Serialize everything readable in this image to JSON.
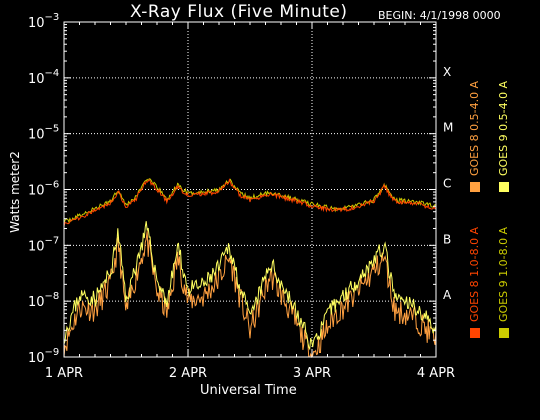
{
  "chart_data": {
    "type": "line",
    "title": "X-Ray Flux (Five Minute)",
    "subtitle": "BEGIN: 4/1/1998 0000",
    "xlabel": "Universal Time",
    "ylabel": "Watts meter⁻²",
    "ylabel_text": "Watts meter2",
    "y_scale": "log",
    "ylim": [
      1e-09,
      0.001
    ],
    "y_ticks": [
      {
        "exp": "-9",
        "value": 1e-09
      },
      {
        "exp": "-8",
        "value": 1e-08
      },
      {
        "exp": "-7",
        "value": 1e-07
      },
      {
        "exp": "-6",
        "value": 1e-06
      },
      {
        "exp": "-5",
        "value": 1e-05
      },
      {
        "exp": "-4",
        "value": 0.0001
      },
      {
        "exp": "-3",
        "value": 0.001
      }
    ],
    "x_ticks": [
      "1 APR",
      "2 APR",
      "3 APR",
      "4 APR"
    ],
    "xlim": [
      "1998-04-01 00:00",
      "1998-04-04 00:00"
    ],
    "grid": true,
    "flare_classes": [
      {
        "label": "X",
        "value": 0.0001
      },
      {
        "label": "M",
        "value": 1e-05
      },
      {
        "label": "C",
        "value": 1e-06
      },
      {
        "label": "B",
        "value": 1e-07
      },
      {
        "label": "A",
        "value": 1e-08
      }
    ],
    "legend_position": "right",
    "series": [
      {
        "name": "GOES 8 1.0-8.0 A",
        "color": "#ff4400",
        "band": "long"
      },
      {
        "name": "GOES 9 1.0-8.0 A",
        "color": "#cccc00",
        "band": "long"
      },
      {
        "name": "GOES 8 0.5-4.0 A",
        "color": "#ffa040",
        "band": "short"
      },
      {
        "name": "GOES 9 0.5-4.0 A",
        "color": "#ffff60",
        "band": "short"
      }
    ],
    "long_band_points": [
      [
        "1998-04-01 00:00",
        2.6e-07
      ],
      [
        "1998-04-01 03:00",
        3.4e-07
      ],
      [
        "1998-04-01 06:00",
        4.5e-07
      ],
      [
        "1998-04-01 09:00",
        6.2e-07
      ],
      [
        "1998-04-01 10:30",
        1e-06
      ],
      [
        "1998-04-01 12:00",
        5.2e-07
      ],
      [
        "1998-04-01 14:00",
        7.5e-07
      ],
      [
        "1998-04-01 16:00",
        1.6e-06
      ],
      [
        "1998-04-01 18:00",
        1.1e-06
      ],
      [
        "1998-04-01 20:00",
        6.5e-07
      ],
      [
        "1998-04-01 22:00",
        1.2e-06
      ],
      [
        "1998-04-02 00:00",
        8.5e-07
      ],
      [
        "1998-04-02 03:00",
        9e-07
      ],
      [
        "1998-04-02 06:00",
        1e-06
      ],
      [
        "1998-04-02 08:00",
        1.5e-06
      ],
      [
        "1998-04-02 10:00",
        8.5e-07
      ],
      [
        "1998-04-02 12:00",
        7e-07
      ],
      [
        "1998-04-02 16:00",
        9e-07
      ],
      [
        "1998-04-02 20:00",
        7e-07
      ],
      [
        "1998-04-03 00:00",
        5.5e-07
      ],
      [
        "1998-04-03 04:00",
        4.5e-07
      ],
      [
        "1998-04-03 08:00",
        5e-07
      ],
      [
        "1998-04-03 12:00",
        6.5e-07
      ],
      [
        "1998-04-03 14:00",
        1.2e-06
      ],
      [
        "1998-04-03 16:00",
        6.5e-07
      ],
      [
        "1998-04-03 20:00",
        6e-07
      ],
      [
        "1998-04-04 00:00",
        5e-07
      ]
    ],
    "short_band_points": [
      [
        "1998-04-01 00:00",
        1.5e-09
      ],
      [
        "1998-04-01 03:00",
        8e-09
      ],
      [
        "1998-04-01 06:00",
        7e-09
      ],
      [
        "1998-04-01 09:00",
        2e-08
      ],
      [
        "1998-04-01 10:30",
        1.1e-07
      ],
      [
        "1998-04-01 12:00",
        6e-09
      ],
      [
        "1998-04-01 14:00",
        3e-08
      ],
      [
        "1998-04-01 16:00",
        1.3e-07
      ],
      [
        "1998-04-01 18:00",
        1.5e-08
      ],
      [
        "1998-04-01 20:00",
        6e-09
      ],
      [
        "1998-04-01 22:00",
        6e-08
      ],
      [
        "1998-04-02 00:00",
        1e-08
      ],
      [
        "1998-04-02 03:00",
        1.2e-08
      ],
      [
        "1998-04-02 06:00",
        2.5e-08
      ],
      [
        "1998-04-02 08:00",
        6e-08
      ],
      [
        "1998-04-02 10:00",
        1.2e-08
      ],
      [
        "1998-04-02 12:00",
        3e-09
      ],
      [
        "1998-04-02 16:00",
        3e-08
      ],
      [
        "1998-04-02 20:00",
        6e-09
      ],
      [
        "1998-04-03 00:00",
        1e-09
      ],
      [
        "1998-04-03 04:00",
        5e-09
      ],
      [
        "1998-04-03 08:00",
        1.2e-08
      ],
      [
        "1998-04-03 12:00",
        3.5e-08
      ],
      [
        "1998-04-03 14:00",
        6e-08
      ],
      [
        "1998-04-03 16:00",
        7e-09
      ],
      [
        "1998-04-03 20:00",
        5e-09
      ],
      [
        "1998-04-04 00:00",
        2e-09
      ]
    ]
  }
}
